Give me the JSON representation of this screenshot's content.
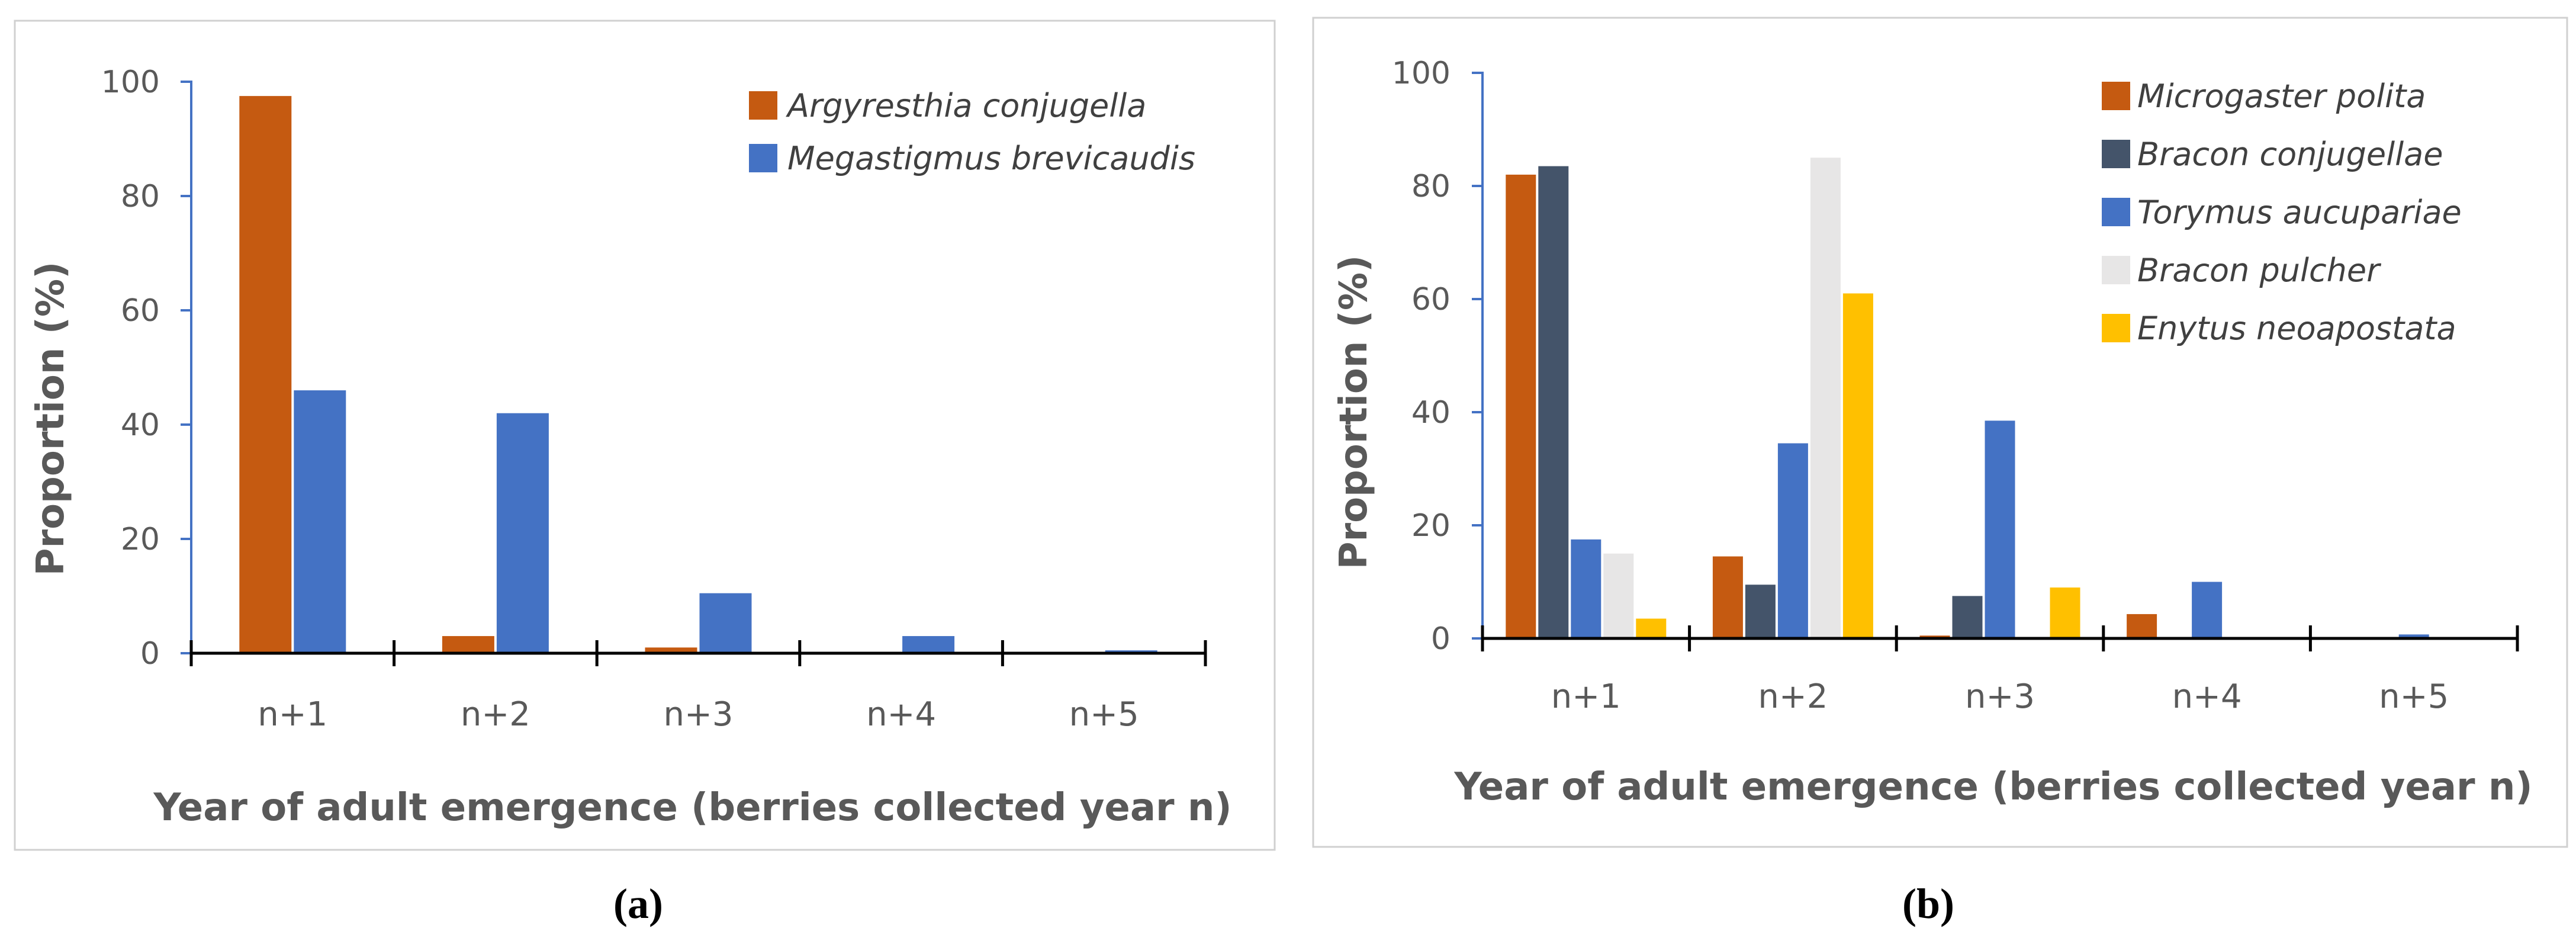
{
  "chart_data": [
    {
      "panel_label": "(a)",
      "type": "bar",
      "title": "",
      "categories": [
        "n+1",
        "n+2",
        "n+3",
        "n+4",
        "n+5"
      ],
      "xlabel": "Year of adult emergence (berries collected year n)",
      "ylabel": "Proportion (%)",
      "ylim": [
        0,
        100
      ],
      "yticks": [
        0,
        20,
        40,
        60,
        80,
        100
      ],
      "grid": false,
      "legend_position": "top-right",
      "series": [
        {
          "name": "Argyresthia conjugella",
          "color": "#C55A11",
          "values": [
            97.5,
            3,
            1,
            0,
            0
          ]
        },
        {
          "name": "Megastigmus brevicaudis",
          "color": "#4472C4",
          "values": [
            46,
            42,
            10.5,
            3,
            0.5
          ]
        }
      ]
    },
    {
      "panel_label": "(b)",
      "type": "bar",
      "title": "",
      "categories": [
        "n+1",
        "n+2",
        "n+3",
        "n+4",
        "n+5"
      ],
      "xlabel": "Year of adult emergence (berries collected year n)",
      "ylabel": "Proportion (%)",
      "ylim": [
        0,
        100
      ],
      "yticks": [
        0,
        20,
        40,
        60,
        80,
        100
      ],
      "grid": false,
      "legend_position": "top-right",
      "series": [
        {
          "name": "Microgaster polita",
          "color": "#C55A11",
          "values": [
            82,
            14.5,
            0.5,
            4.3,
            0
          ]
        },
        {
          "name": "Bracon conjugellae",
          "color": "#44546A",
          "values": [
            83.5,
            9.5,
            7.5,
            0,
            0
          ]
        },
        {
          "name": "Torymus aucupariae",
          "color": "#4472C4",
          "values": [
            17.5,
            34.5,
            38.5,
            10,
            0.7
          ]
        },
        {
          "name": "Bracon pulcher",
          "color": "#E7E6E6",
          "values": [
            15,
            85,
            0,
            0,
            0
          ]
        },
        {
          "name": "Enytus neoapostata",
          "color": "#FFC000",
          "values": [
            3.5,
            61,
            9,
            0,
            0
          ]
        }
      ]
    }
  ]
}
